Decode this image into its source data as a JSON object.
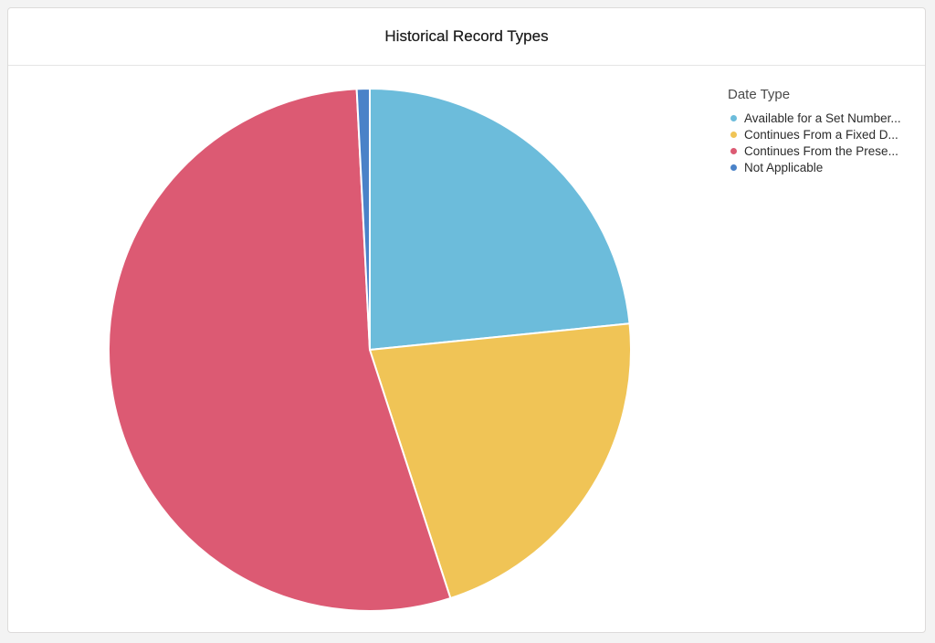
{
  "header": {
    "title": "Historical Record Types"
  },
  "legend": {
    "title": "Date Type",
    "position": "top-right"
  },
  "chart_data": {
    "type": "pie",
    "title": "Historical Record Types",
    "start_angle_deg": 0,
    "direction": "clockwise",
    "slices": [
      {
        "label": "Available for a Set Number...",
        "value": 23.4,
        "color": "#6cbcdb"
      },
      {
        "label": "Continues From a Fixed D...",
        "value": 21.6,
        "color": "#f0c456"
      },
      {
        "label": "Continues From the Prese...",
        "value": 54.2,
        "color": "#dc5a73"
      },
      {
        "label": "Not Applicable",
        "value": 0.8,
        "color": "#4a82c8"
      }
    ]
  }
}
